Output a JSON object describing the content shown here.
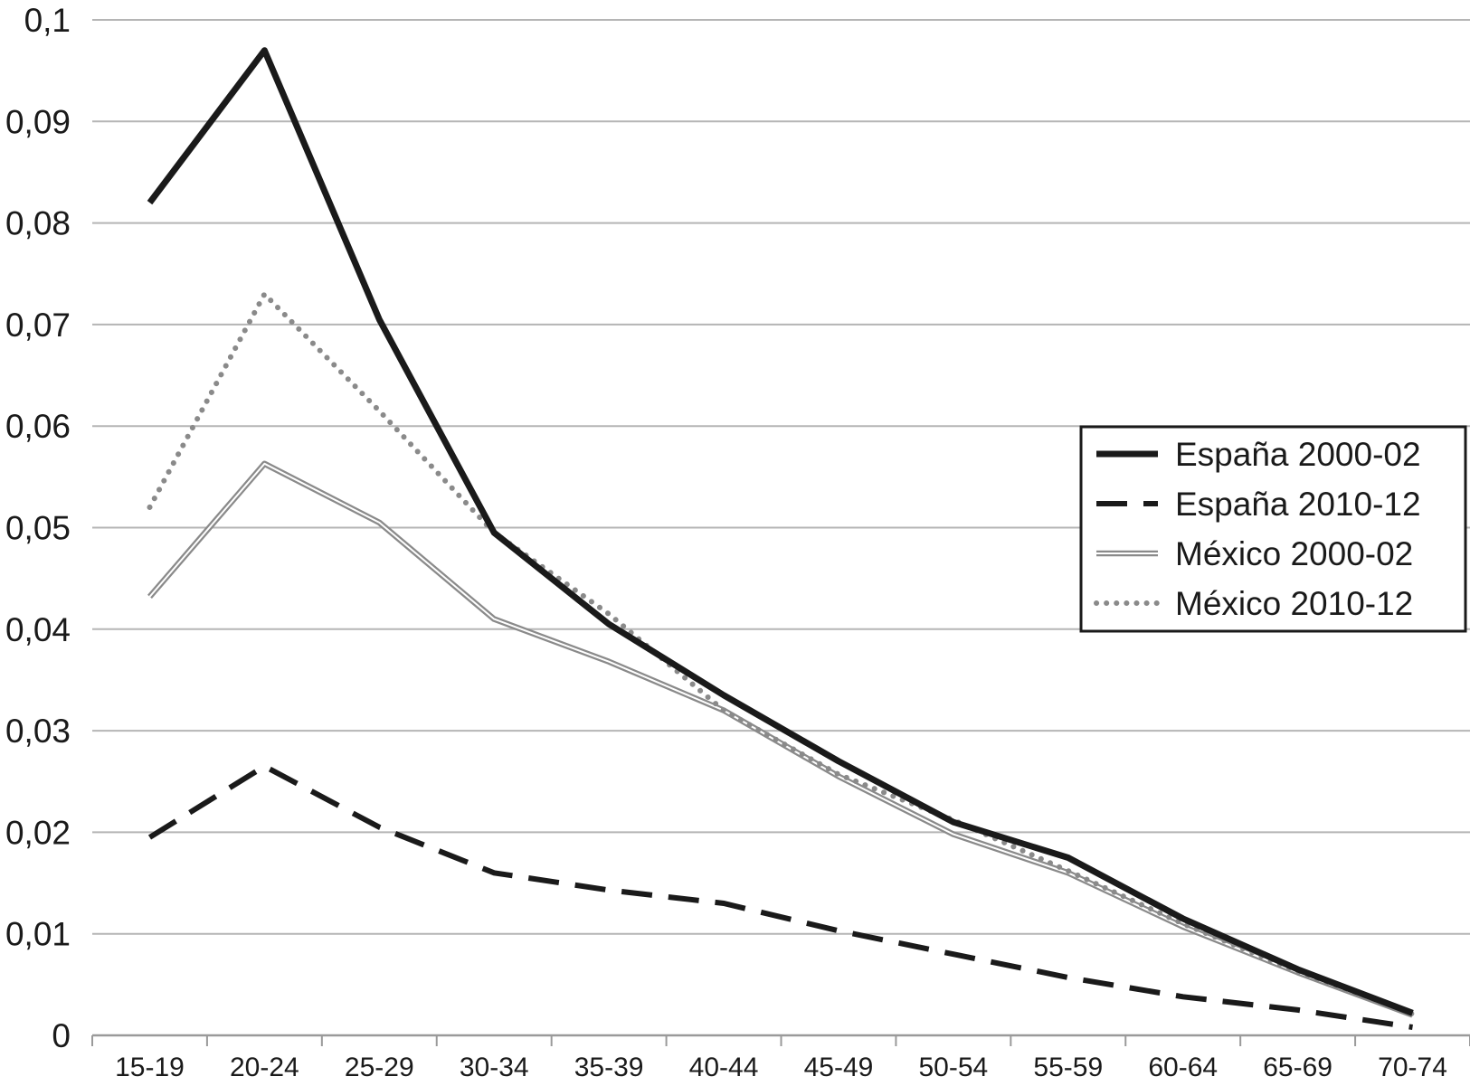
{
  "chart_data": {
    "type": "line",
    "title": "",
    "xlabel": "",
    "ylabel": "",
    "categories": [
      "15-19",
      "20-24",
      "25-29",
      "30-34",
      "35-39",
      "40-44",
      "45-49",
      "50-54",
      "55-59",
      "60-64",
      "65-69",
      "70-74"
    ],
    "ylim": [
      0,
      0.1
    ],
    "yticks": [
      0,
      0.01,
      0.02,
      0.03,
      0.04,
      0.05,
      0.06,
      0.07,
      0.08,
      0.09,
      0.1
    ],
    "ytick_labels": [
      "0",
      "0,01",
      "0,02",
      "0,03",
      "0,04",
      "0,05",
      "0,06",
      "0,07",
      "0,08",
      "0,09",
      "0,1"
    ],
    "grid": true,
    "legend_position": "right",
    "series": [
      {
        "name": "España 2000-02",
        "style": "solid",
        "color": "#1a1a1a",
        "values": [
          0.082,
          0.097,
          0.0705,
          0.0495,
          0.0405,
          0.0335,
          0.027,
          0.021,
          0.0175,
          0.0115,
          0.0065,
          0.0022
        ]
      },
      {
        "name": "España 2010-12",
        "style": "dashed",
        "color": "#1a1a1a",
        "values": [
          0.0195,
          0.0265,
          0.0205,
          0.016,
          0.0143,
          0.013,
          0.0103,
          0.008,
          0.0057,
          0.0038,
          0.0025,
          0.0008
        ]
      },
      {
        "name": "México 2000-02",
        "style": "double",
        "color": "#8a8a8a",
        "values": [
          0.0432,
          0.0563,
          0.0505,
          0.041,
          0.0368,
          0.032,
          0.0255,
          0.0198,
          0.016,
          0.0107,
          0.0062,
          0.002
        ]
      },
      {
        "name": "México 2010-12",
        "style": "dotted",
        "color": "#8a8a8a",
        "values": [
          0.052,
          0.073,
          0.0615,
          0.0495,
          0.0415,
          0.032,
          0.0257,
          0.0212,
          0.0162,
          0.011,
          0.0063,
          0.0021
        ]
      }
    ]
  }
}
